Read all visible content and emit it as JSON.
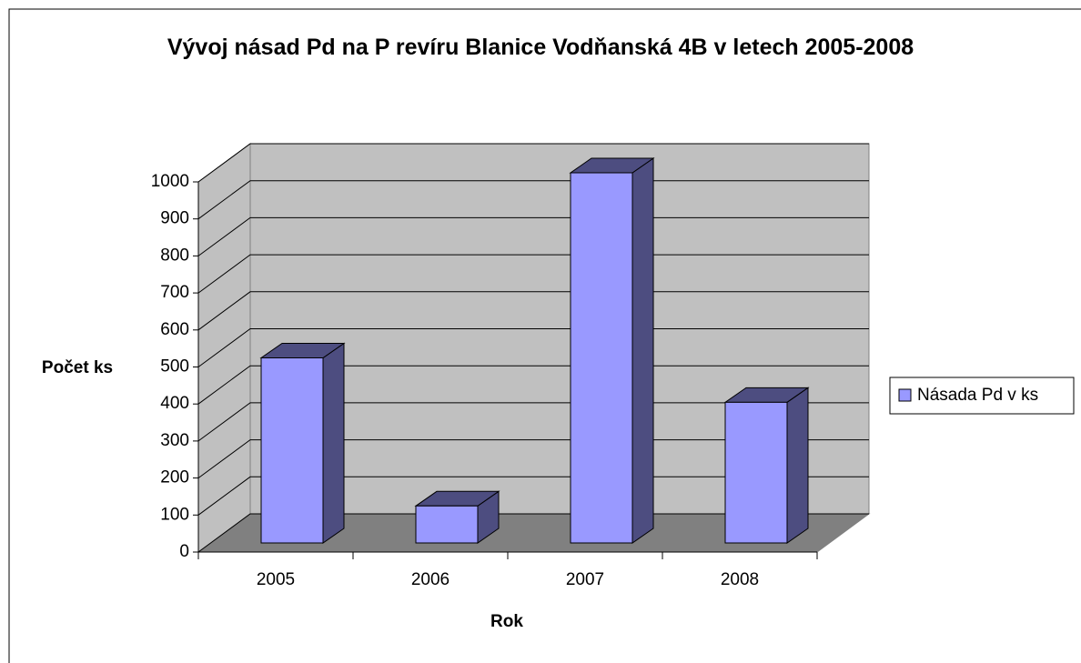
{
  "chart_data": {
    "type": "bar3d",
    "title": "Vývoj násad Pd na P revíru Blanice Vodňanská 4B v letech 2005-2008",
    "x_label": "Rok",
    "y_label": "Počet ks",
    "categories": [
      "2005",
      "2006",
      "2007",
      "2008"
    ],
    "series": [
      {
        "name": "Násada Pd v ks",
        "color": "#9999ff",
        "values": [
          500,
          100,
          1000,
          380
        ]
      }
    ],
    "ylim": [
      0,
      1000
    ],
    "yticks": [
      0,
      100,
      200,
      300,
      400,
      500,
      600,
      700,
      800,
      900,
      1000
    ],
    "grid": true,
    "legend": "right"
  }
}
